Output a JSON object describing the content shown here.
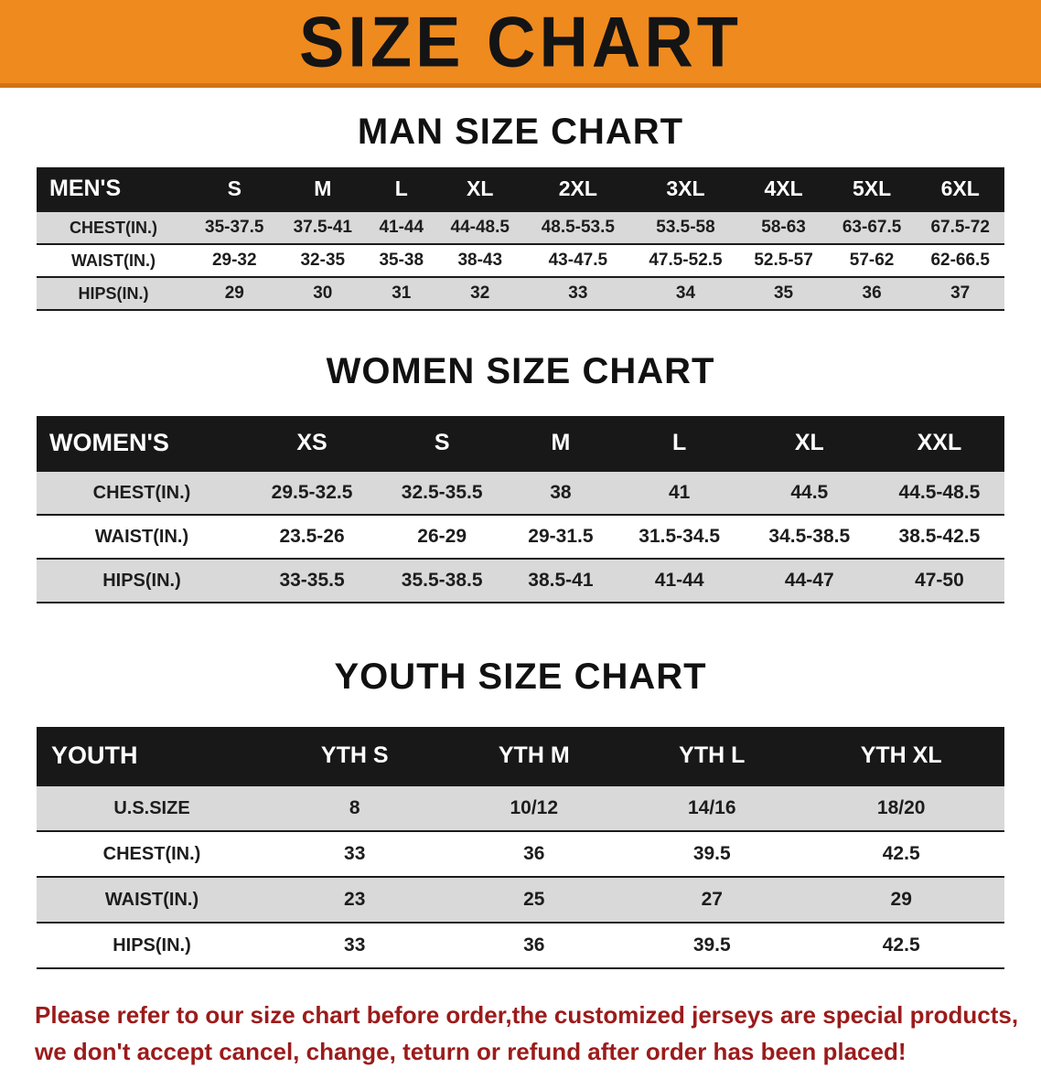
{
  "banner": {
    "title": "SIZE CHART"
  },
  "colors": {
    "banner_bg": "#ef8a1e",
    "table_header_bg": "#181818",
    "row_shade": "#d9d9d9",
    "disclaimer_red": "#9b1b1b"
  },
  "sections": [
    {
      "heading": "MAN SIZE CHART",
      "table": {
        "header": [
          "MEN'S",
          "S",
          "M",
          "L",
          "XL",
          "2XL",
          "3XL",
          "4XL",
          "5XL",
          "6XL"
        ],
        "rows": [
          [
            "CHEST(IN.)",
            "35-37.5",
            "37.5-41",
            "41-44",
            "44-48.5",
            "48.5-53.5",
            "53.5-58",
            "58-63",
            "63-67.5",
            "67.5-72"
          ],
          [
            "WAIST(IN.)",
            "29-32",
            "32-35",
            "35-38",
            "38-43",
            "43-47.5",
            "47.5-52.5",
            "52.5-57",
            "57-62",
            "62-66.5"
          ],
          [
            "HIPS(IN.)",
            "29",
            "30",
            "31",
            "32",
            "33",
            "34",
            "35",
            "36",
            "37"
          ]
        ]
      }
    },
    {
      "heading": "WOMEN SIZE CHART",
      "table": {
        "header": [
          "WOMEN'S",
          "XS",
          "S",
          "M",
          "L",
          "XL",
          "XXL"
        ],
        "rows": [
          [
            "CHEST(IN.)",
            "29.5-32.5",
            "32.5-35.5",
            "38",
            "41",
            "44.5",
            "44.5-48.5"
          ],
          [
            "WAIST(IN.)",
            "23.5-26",
            "26-29",
            "29-31.5",
            "31.5-34.5",
            "34.5-38.5",
            "38.5-42.5"
          ],
          [
            "HIPS(IN.)",
            "33-35.5",
            "35.5-38.5",
            "38.5-41",
            "41-44",
            "44-47",
            "47-50"
          ]
        ]
      }
    },
    {
      "heading": "YOUTH SIZE CHART",
      "table": {
        "header": [
          "YOUTH",
          "YTH S",
          "YTH M",
          "YTH L",
          "YTH XL"
        ],
        "rows": [
          [
            "U.S.SIZE",
            "8",
            "10/12",
            "14/16",
            "18/20"
          ],
          [
            "CHEST(IN.)",
            "33",
            "36",
            "39.5",
            "42.5"
          ],
          [
            "WAIST(IN.)",
            "23",
            "25",
            "27",
            "29"
          ],
          [
            "HIPS(IN.)",
            "33",
            "36",
            "39.5",
            "42.5"
          ]
        ]
      }
    }
  ],
  "footer": {
    "line1": "Please refer to our size chart before order,the customized jerseys are special products,",
    "line2": "we don't accept cancel, change, teturn or refund after order has been placed!"
  }
}
